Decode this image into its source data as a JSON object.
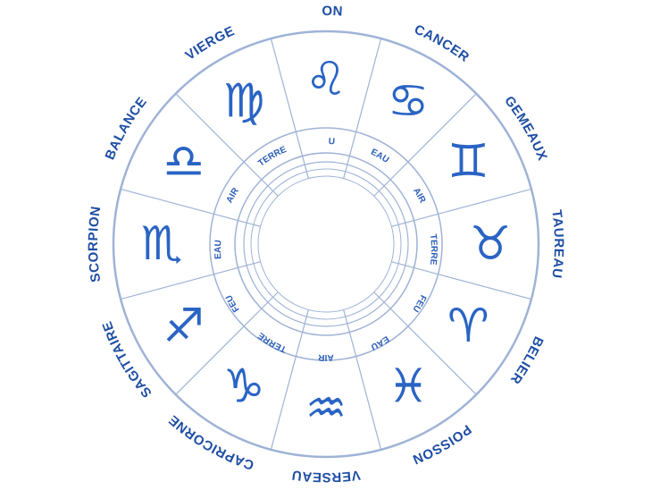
{
  "wheel": {
    "accent_color": "#1f4ea3",
    "line_color": "#9fb3d6",
    "signs": [
      {
        "name": "LION",
        "element": "FEU",
        "symbol": "♌",
        "icon": "lion-icon"
      },
      {
        "name": "CANCER",
        "element": "EAU",
        "symbol": "♋",
        "icon": "crab-icon"
      },
      {
        "name": "GEMEAUX",
        "element": "AIR",
        "symbol": "♊",
        "icon": "twins-icon"
      },
      {
        "name": "TAUREAU",
        "element": "TERRE",
        "symbol": "♉",
        "icon": "bull-icon"
      },
      {
        "name": "BELIER",
        "element": "FEU",
        "symbol": "♈",
        "icon": "ram-icon"
      },
      {
        "name": "POISSON",
        "element": "EAU",
        "symbol": "♓",
        "icon": "fish-icon"
      },
      {
        "name": "VERSEAU",
        "element": "AIR",
        "symbol": "♒",
        "icon": "water-bearer-icon"
      },
      {
        "name": "CAPRICORNE",
        "element": "TERRE",
        "symbol": "♑",
        "icon": "goat-icon"
      },
      {
        "name": "SAGITTAIRE",
        "element": "FEU",
        "symbol": "♐",
        "icon": "archer-icon"
      },
      {
        "name": "SCORPION",
        "element": "EAU",
        "symbol": "♏",
        "icon": "scorpion-icon"
      },
      {
        "name": "BALANCE",
        "element": "AIR",
        "symbol": "♎",
        "icon": "scales-icon"
      },
      {
        "name": "VIERGE",
        "element": "TERRE",
        "symbol": "♍",
        "icon": "virgin-icon"
      }
    ]
  }
}
